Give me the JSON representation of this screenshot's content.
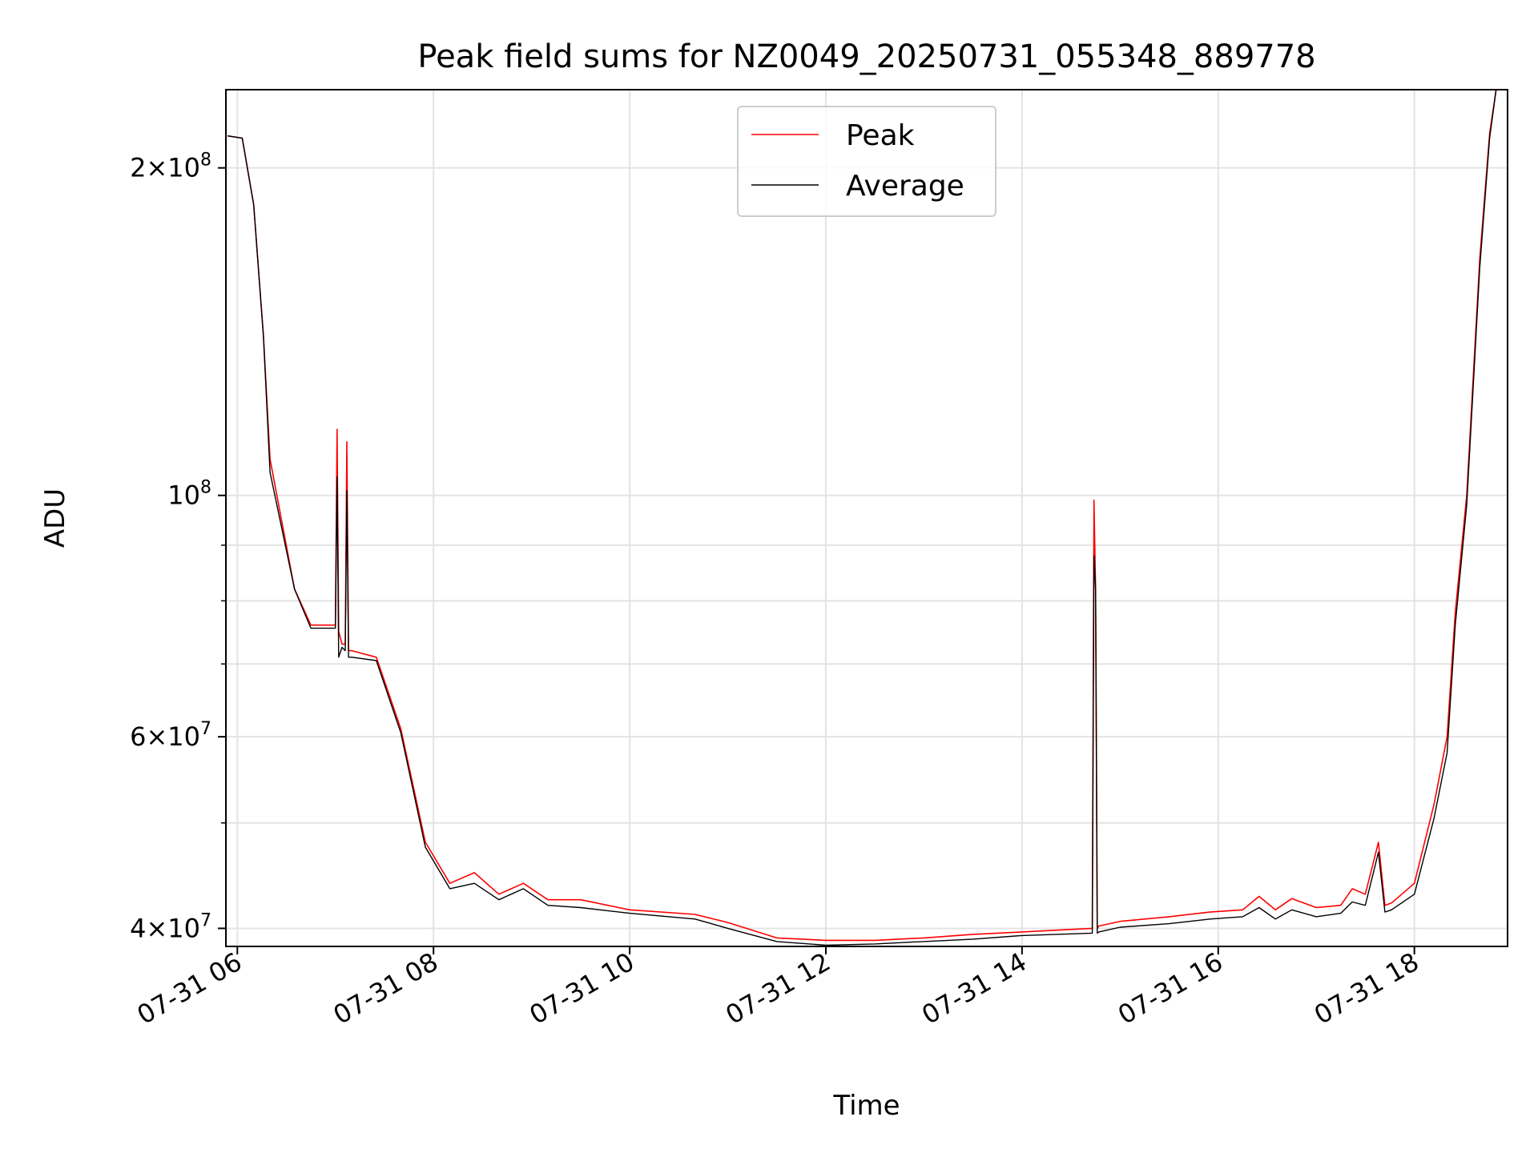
{
  "chart_data": {
    "type": "line",
    "title": "Peak field sums for NZ0049_20250731_055348_889778",
    "xlabel": "Time",
    "ylabel": "ADU",
    "y_scale": "log",
    "ylim": [
      38500000,
      236000000
    ],
    "xlim": [
      "2025-07-31T05:53",
      "2025-07-31T18:57"
    ],
    "grid": true,
    "legend_position": "upper center",
    "x_ticks": [
      {
        "t": "2025-07-31T06:00",
        "label": "07-31 06"
      },
      {
        "t": "2025-07-31T08:00",
        "label": "07-31 08"
      },
      {
        "t": "2025-07-31T10:00",
        "label": "07-31 10"
      },
      {
        "t": "2025-07-31T12:00",
        "label": "07-31 12"
      },
      {
        "t": "2025-07-31T14:00",
        "label": "07-31 14"
      },
      {
        "t": "2025-07-31T16:00",
        "label": "07-31 16"
      },
      {
        "t": "2025-07-31T18:00",
        "label": "07-31 18"
      }
    ],
    "y_major_ticks": [
      {
        "value": 40000000,
        "base": "4",
        "exp": "7"
      },
      {
        "value": 60000000,
        "base": "6",
        "exp": "7"
      },
      {
        "value": 100000000,
        "base": "",
        "exp": "8"
      },
      {
        "value": 200000000,
        "base": "2",
        "exp": "8"
      }
    ],
    "y_minor_ticks": [
      50000000,
      70000000,
      80000000,
      90000000
    ],
    "series": [
      {
        "name": "Peak",
        "color": "#ff0000",
        "x": [
          "2025-07-31T05:54",
          "2025-07-31T06:03",
          "2025-07-31T06:10",
          "2025-07-31T06:16",
          "2025-07-31T06:20",
          "2025-07-31T06:35",
          "2025-07-31T06:45",
          "2025-07-31T07:00",
          "2025-07-31T07:01",
          "2025-07-31T07:02",
          "2025-07-31T07:04",
          "2025-07-31T07:06",
          "2025-07-31T07:07",
          "2025-07-31T07:08",
          "2025-07-31T07:10",
          "2025-07-31T07:25",
          "2025-07-31T07:40",
          "2025-07-31T07:55",
          "2025-07-31T08:10",
          "2025-07-31T08:25",
          "2025-07-31T08:40",
          "2025-07-31T08:55",
          "2025-07-31T09:10",
          "2025-07-31T09:30",
          "2025-07-31T10:00",
          "2025-07-31T10:40",
          "2025-07-31T11:00",
          "2025-07-31T11:30",
          "2025-07-31T12:00",
          "2025-07-31T12:30",
          "2025-07-31T13:00",
          "2025-07-31T13:30",
          "2025-07-31T14:00",
          "2025-07-31T14:43",
          "2025-07-31T14:44",
          "2025-07-31T14:45",
          "2025-07-31T14:46",
          "2025-07-31T14:47",
          "2025-07-31T15:00",
          "2025-07-31T15:30",
          "2025-07-31T15:55",
          "2025-07-31T16:15",
          "2025-07-31T16:25",
          "2025-07-31T16:35",
          "2025-07-31T16:45",
          "2025-07-31T17:00",
          "2025-07-31T17:15",
          "2025-07-31T17:22",
          "2025-07-31T17:30",
          "2025-07-31T17:38",
          "2025-07-31T17:42",
          "2025-07-31T17:46",
          "2025-07-31T18:00",
          "2025-07-31T18:12",
          "2025-07-31T18:20",
          "2025-07-31T18:25",
          "2025-07-31T18:32",
          "2025-07-31T18:40",
          "2025-07-31T18:46",
          "2025-07-31T18:50",
          "2025-07-31T18:57"
        ],
        "values": [
          214000000,
          213000000,
          185000000,
          140000000,
          108000000,
          82000000,
          76000000,
          76000000,
          115000000,
          75000000,
          73000000,
          73000000,
          112000000,
          72000000,
          72000000,
          71000000,
          61000000,
          48000000,
          44000000,
          45000000,
          43000000,
          44000000,
          42500000,
          42500000,
          41600000,
          41200000,
          40500000,
          39200000,
          39000000,
          39000000,
          39200000,
          39500000,
          39700000,
          40000000,
          99000000,
          82000000,
          40000000,
          40200000,
          40600000,
          41000000,
          41400000,
          41600000,
          42800000,
          41600000,
          42600000,
          41800000,
          42000000,
          43500000,
          43000000,
          48000000,
          42000000,
          42200000,
          44000000,
          52000000,
          60000000,
          78000000,
          100000000,
          165000000,
          215000000,
          236000000,
          236000000
        ]
      },
      {
        "name": "Average",
        "color": "#000000",
        "x": [
          "2025-07-31T05:54",
          "2025-07-31T06:03",
          "2025-07-31T06:10",
          "2025-07-31T06:16",
          "2025-07-31T06:20",
          "2025-07-31T06:35",
          "2025-07-31T06:45",
          "2025-07-31T07:00",
          "2025-07-31T07:01",
          "2025-07-31T07:02",
          "2025-07-31T07:04",
          "2025-07-31T07:06",
          "2025-07-31T07:07",
          "2025-07-31T07:08",
          "2025-07-31T07:10",
          "2025-07-31T07:25",
          "2025-07-31T07:40",
          "2025-07-31T07:55",
          "2025-07-31T08:10",
          "2025-07-31T08:25",
          "2025-07-31T08:40",
          "2025-07-31T08:55",
          "2025-07-31T09:10",
          "2025-07-31T09:30",
          "2025-07-31T10:00",
          "2025-07-31T10:40",
          "2025-07-31T11:00",
          "2025-07-31T11:30",
          "2025-07-31T12:00",
          "2025-07-31T12:30",
          "2025-07-31T13:00",
          "2025-07-31T13:30",
          "2025-07-31T14:00",
          "2025-07-31T14:43",
          "2025-07-31T14:44",
          "2025-07-31T14:45",
          "2025-07-31T14:46",
          "2025-07-31T14:47",
          "2025-07-31T15:00",
          "2025-07-31T15:30",
          "2025-07-31T15:55",
          "2025-07-31T16:15",
          "2025-07-31T16:25",
          "2025-07-31T16:35",
          "2025-07-31T16:45",
          "2025-07-31T17:00",
          "2025-07-31T17:15",
          "2025-07-31T17:22",
          "2025-07-31T17:30",
          "2025-07-31T17:38",
          "2025-07-31T17:42",
          "2025-07-31T17:46",
          "2025-07-31T18:00",
          "2025-07-31T18:12",
          "2025-07-31T18:20",
          "2025-07-31T18:25",
          "2025-07-31T18:32",
          "2025-07-31T18:40",
          "2025-07-31T18:46",
          "2025-07-31T18:50",
          "2025-07-31T18:57"
        ],
        "values": [
          214000000,
          213000000,
          185000000,
          140000000,
          105000000,
          82000000,
          75500000,
          75500000,
          104000000,
          71000000,
          72500000,
          72000000,
          101000000,
          71000000,
          71000000,
          70500000,
          60500000,
          47500000,
          43500000,
          44000000,
          42500000,
          43500000,
          42000000,
          41800000,
          41300000,
          40800000,
          40000000,
          38900000,
          38600000,
          38700000,
          38900000,
          39100000,
          39400000,
          39600000,
          88000000,
          82000000,
          39600000,
          39700000,
          40100000,
          40400000,
          40800000,
          41000000,
          41800000,
          40800000,
          41600000,
          41000000,
          41300000,
          42300000,
          42000000,
          47000000,
          41400000,
          41600000,
          43000000,
          50500000,
          58000000,
          76000000,
          98000000,
          162000000,
          213000000,
          236000000,
          236000000
        ]
      }
    ]
  }
}
